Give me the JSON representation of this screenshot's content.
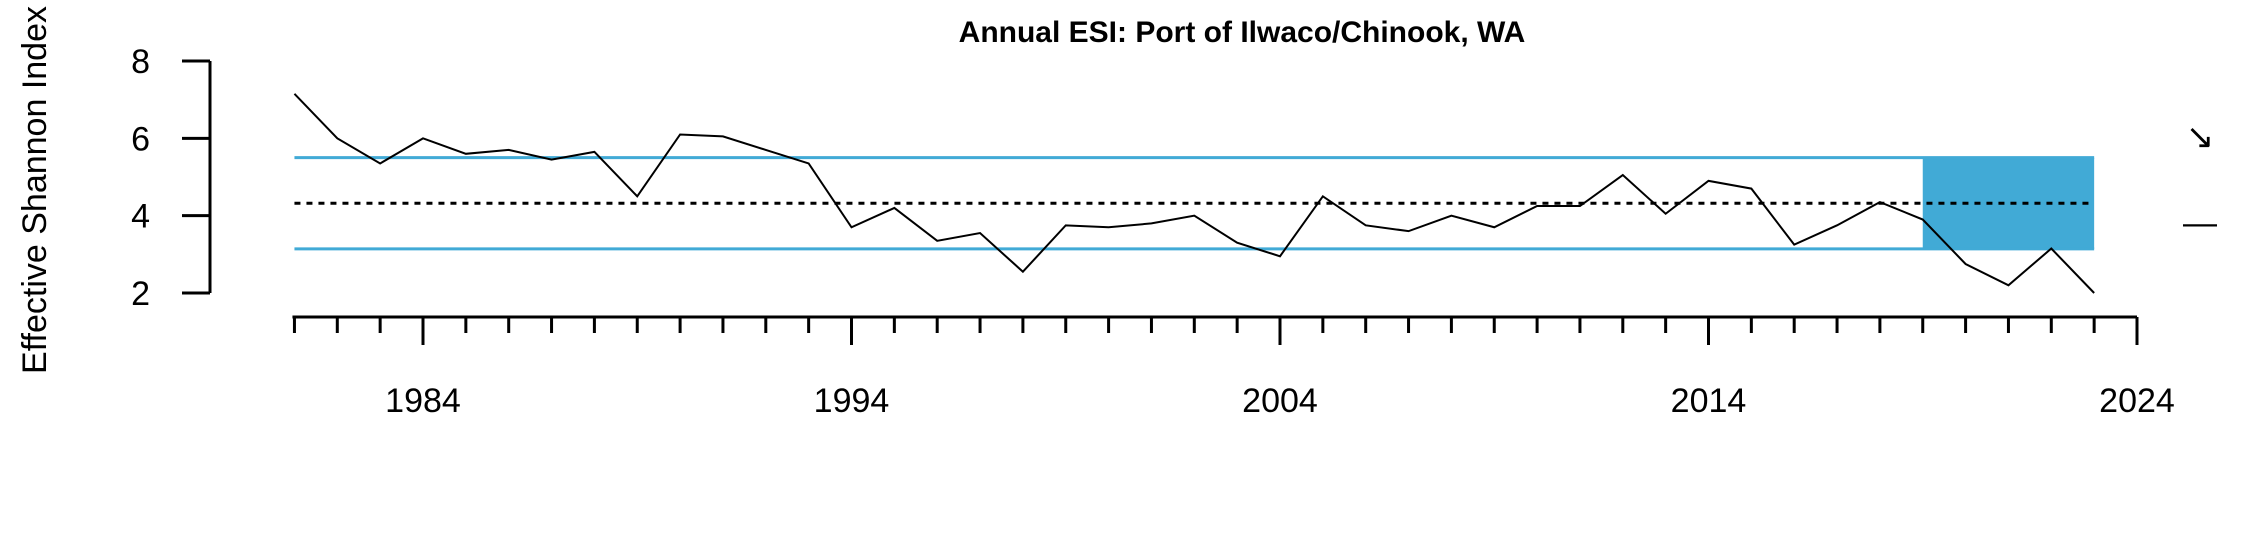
{
  "chart_data": {
    "type": "line",
    "title": "Annual ESI: Port of Ilwaco/Chinook, WA",
    "xlabel": "",
    "ylabel": "Effective Shannon Index",
    "xlim": [
      1981,
      2024
    ],
    "ylim": [
      2,
      8
    ],
    "y_ticks": [
      "2",
      "4",
      "6",
      "8"
    ],
    "x_tick_labels": [
      "1984",
      "1994",
      "2004",
      "2014",
      "2024"
    ],
    "x_major_ticks": [
      1984,
      1994,
      2004,
      2014,
      2024
    ],
    "x_minor_tick_range": [
      1981,
      2024
    ],
    "grid": false,
    "colors": {
      "line": "#000000",
      "bands": "#41aad6",
      "shade": "#41aad6",
      "mean": "#000000"
    },
    "series": [
      {
        "x": [
          1981,
          1982,
          1983,
          1984,
          1985,
          1986,
          1987,
          1988,
          1989,
          1990,
          1991,
          1992,
          1993,
          1994,
          1995,
          1996,
          1997,
          1998,
          1999,
          2000,
          2001,
          2002,
          2003,
          2004,
          2005,
          2006,
          2007,
          2008,
          2009,
          2010,
          2011,
          2012,
          2013,
          2014,
          2015,
          2016,
          2017,
          2018,
          2019,
          2020,
          2021,
          2022,
          2023
        ],
        "values": [
          7.15,
          6.0,
          5.35,
          6.0,
          5.6,
          5.7,
          5.45,
          5.65,
          4.5,
          6.1,
          6.05,
          5.7,
          5.35,
          3.7,
          4.2,
          3.35,
          3.55,
          2.55,
          3.75,
          3.7,
          3.8,
          4.0,
          3.3,
          2.95,
          4.5,
          3.75,
          3.6,
          4.0,
          3.7,
          4.25,
          4.25,
          5.05,
          4.05,
          4.9,
          4.7,
          3.25,
          3.75,
          4.35,
          3.9,
          2.75,
          2.2,
          3.15,
          2.0
        ]
      }
    ],
    "mean": 4.32,
    "upper_sd": 5.5,
    "lower_sd": 3.14,
    "shade_range": [
      2019,
      2023
    ],
    "trend_symbol": "↘",
    "mean_symbol": "—"
  }
}
